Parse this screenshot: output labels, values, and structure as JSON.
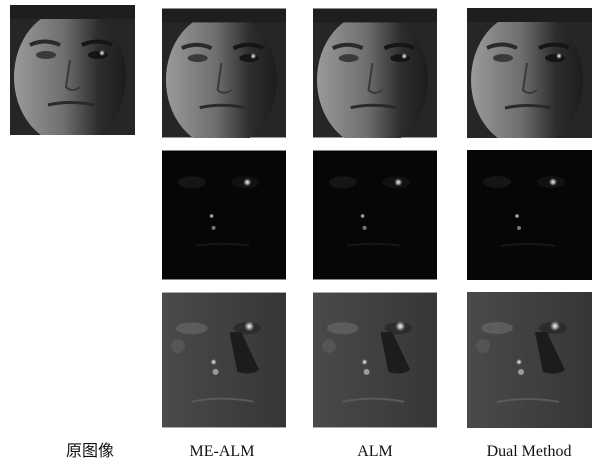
{
  "captions": [
    "原图像",
    "ME-ALM",
    "ALM",
    "Dual Method"
  ]
}
